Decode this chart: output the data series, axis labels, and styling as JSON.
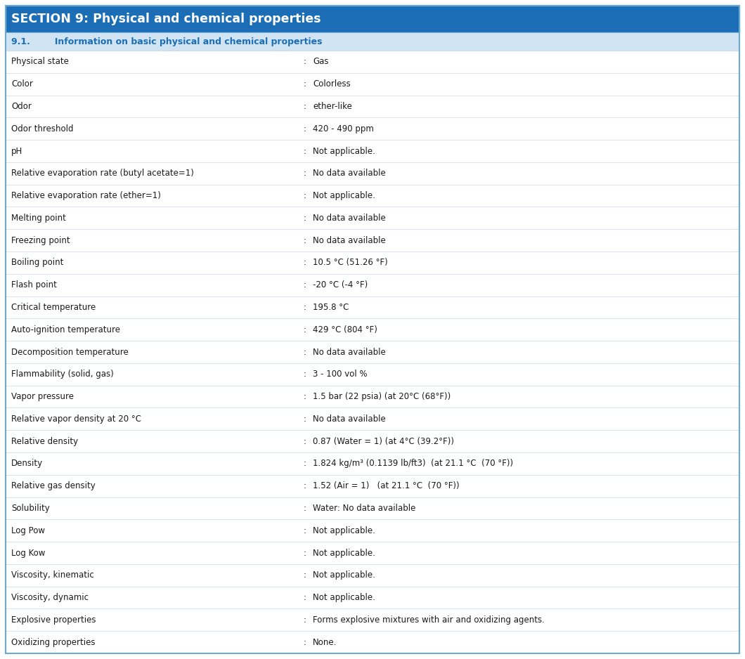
{
  "section_title": "SECTION 9: Physical and chemical properties",
  "subsection_title": "9.1.        Information on basic physical and chemical properties",
  "header_bg": "#1B6EB5",
  "header_text_color": "#FFFFFF",
  "subheader_bg": "#D0E4F4",
  "subheader_text_color": "#1B6EB5",
  "row_bg": "#FFFFFF",
  "border_color": "#6AAAD4",
  "row_line_color": "#C8D8E8",
  "text_color": "#1A1A1A",
  "col_split": 0.415,
  "rows": [
    [
      "Physical state",
      "Gas"
    ],
    [
      "Color",
      "Colorless"
    ],
    [
      "Odor",
      "ether-like"
    ],
    [
      "Odor threshold",
      "420 - 490 ppm"
    ],
    [
      "pH",
      "Not applicable."
    ],
    [
      "Relative evaporation rate (butyl acetate=1)",
      "No data available"
    ],
    [
      "Relative evaporation rate (ether=1)",
      "Not applicable."
    ],
    [
      "Melting point",
      "No data available"
    ],
    [
      "Freezing point",
      "No data available"
    ],
    [
      "Boiling point",
      "10.5 °C (51.26 °F)"
    ],
    [
      "Flash point",
      "-20 °C (-4 °F)"
    ],
    [
      "Critical temperature",
      "195.8 °C"
    ],
    [
      "Auto-ignition temperature",
      "429 °C (804 °F)"
    ],
    [
      "Decomposition temperature",
      "No data available"
    ],
    [
      "Flammability (solid, gas)",
      "3 - 100 vol %"
    ],
    [
      "Vapor pressure",
      "1.5 bar (22 psia) (at 20°C (68°F))"
    ],
    [
      "Relative vapor density at 20 °C",
      "No data available"
    ],
    [
      "Relative density",
      "0.87 (Water = 1) (at 4°C (39.2°F))"
    ],
    [
      "Density",
      "1.824 kg/m³ (0.1139 lb/ft3)  (at 21.1 °C  (70 °F))"
    ],
    [
      "Relative gas density",
      "1.52 (Air = 1)   (at 21.1 °C  (70 °F))"
    ],
    [
      "Solubility",
      "Water: No data available"
    ],
    [
      "Log Pow",
      "Not applicable."
    ],
    [
      "Log Kow",
      "Not applicable."
    ],
    [
      "Viscosity, kinematic",
      "Not applicable."
    ],
    [
      "Viscosity, dynamic",
      "Not applicable."
    ],
    [
      "Explosive properties",
      "Forms explosive mixtures with air and oxidizing agents."
    ],
    [
      "Oxidizing properties",
      "None."
    ]
  ],
  "header_fontsize": 12.5,
  "subheader_fontsize": 9.0,
  "row_fontsize": 8.5
}
